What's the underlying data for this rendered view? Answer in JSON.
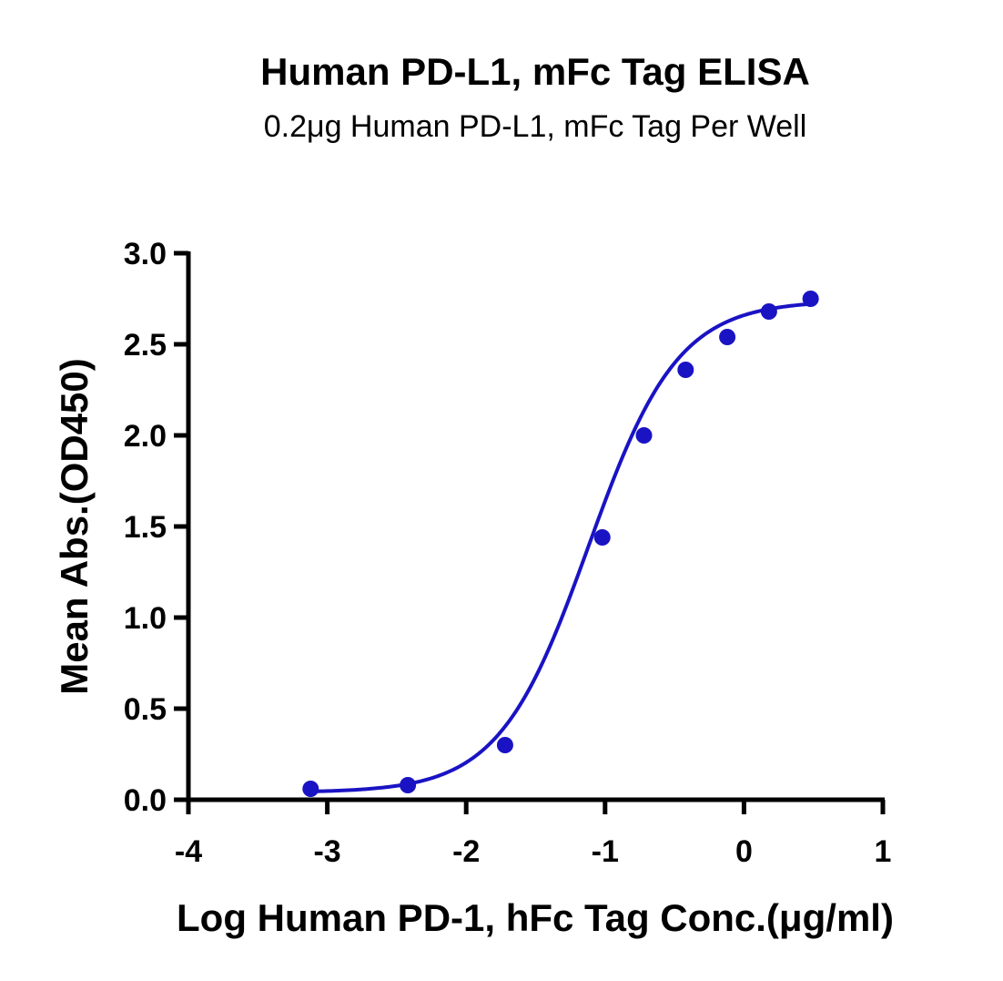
{
  "chart_data": {
    "type": "scatter",
    "title": "Human PD-L1, mFc Tag ELISA",
    "subtitle": "0.2μg Human PD-L1, mFc Tag Per Well",
    "xlabel": "Log Human PD-1, hFc Tag Conc.(μg/ml)",
    "ylabel": "Mean Abs.(OD450)",
    "xlim": [
      -4,
      1
    ],
    "ylim": [
      0.0,
      3.0
    ],
    "x_ticks": [
      "-4",
      "-3",
      "-2",
      "-1",
      "0",
      "1"
    ],
    "y_ticks": [
      "0.0",
      "0.5",
      "1.0",
      "1.5",
      "2.0",
      "2.5",
      "3.0"
    ],
    "x_tick_values": [
      -4,
      -3,
      -2,
      -1,
      0,
      1
    ],
    "y_tick_values": [
      0.0,
      0.5,
      1.0,
      1.5,
      2.0,
      2.5,
      3.0
    ],
    "grid": false,
    "series": [
      {
        "color": "#1a13c4",
        "x": [
          -3.12,
          -2.42,
          -1.72,
          -1.02,
          -0.72,
          -0.42,
          -0.12,
          0.18,
          0.48
        ],
        "y": [
          0.06,
          0.08,
          0.3,
          1.44,
          2.0,
          2.36,
          2.54,
          2.68,
          2.75
        ]
      }
    ],
    "fit_curve": {
      "type": "4PL",
      "color": "#1a13c4",
      "bottom": 0.04,
      "top": 2.74,
      "log_ec50": -1.12,
      "hill_slope": 1.35
    }
  }
}
